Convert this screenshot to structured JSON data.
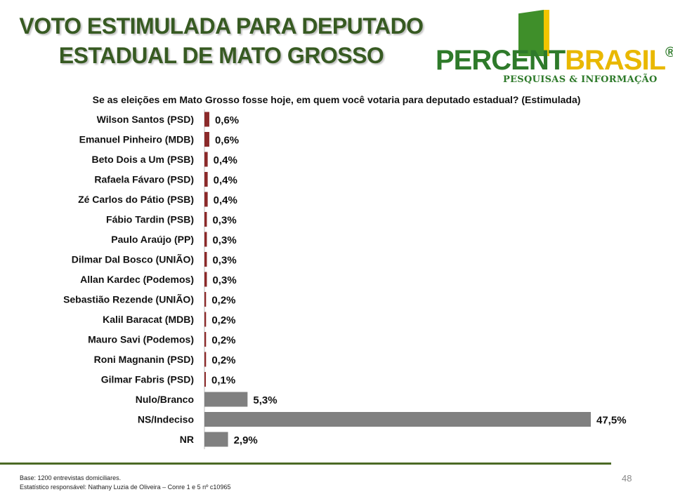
{
  "title_line1": "VOTO ESTIMULADA PARA DEPUTADO",
  "title_line2": "ESTADUAL DE MATO GROSSO",
  "logo": {
    "brand_part1": "PERCENT",
    "brand_part2": "BRASIL",
    "reg": "®",
    "tagline": "PESQUISAS & INFORMAÇÃO"
  },
  "question": "Se as eleições em Mato Grosso fosse hoje, em quem você votaria para deputado estadual? (Estimulada)",
  "footnote_base": "Base: 1200 entrevistas domiciliares.",
  "footnote_stat": "Estatístico responsável: Nathany Luzia de Oliveira – Conre 1 e 5 nº c10965",
  "page_number": "48",
  "colors": {
    "candidate": "#8b2a2a",
    "other": "#808080",
    "title": "#375a22"
  },
  "chart_data": {
    "type": "bar",
    "orientation": "horizontal",
    "categories": [
      "Wilson Santos (PSD)",
      "Emanuel Pinheiro (MDB)",
      "Beto Dois a Um (PSB)",
      "Rafaela Fávaro (PSD)",
      "Zé Carlos do Pátio (PSB)",
      "Fábio Tardin (PSB)",
      "Paulo Araújo (PP)",
      "Dilmar Dal Bosco (UNIÃO)",
      "Allan Kardec (Podemos)",
      "Sebastião Rezende (UNIÃO)",
      "Kalil Baracat (MDB)",
      "Mauro Savi (Podemos)",
      "Roni Magnanin (PSD)",
      "Gilmar Fabris (PSD)",
      "Nulo/Branco",
      "NS/Indeciso",
      "NR"
    ],
    "values": [
      0.6,
      0.6,
      0.4,
      0.4,
      0.4,
      0.3,
      0.3,
      0.3,
      0.3,
      0.2,
      0.2,
      0.2,
      0.2,
      0.1,
      5.3,
      47.5,
      2.9
    ],
    "labels": [
      "0,6%",
      "0,6%",
      "0,4%",
      "0,4%",
      "0,4%",
      "0,3%",
      "0,3%",
      "0,3%",
      "0,3%",
      "0,2%",
      "0,2%",
      "0,2%",
      "0,2%",
      "0,1%",
      "5,3%",
      "47,5%",
      "2,9%"
    ],
    "groups": [
      "candidate",
      "candidate",
      "candidate",
      "candidate",
      "candidate",
      "candidate",
      "candidate",
      "candidate",
      "candidate",
      "candidate",
      "candidate",
      "candidate",
      "candidate",
      "candidate",
      "other",
      "other",
      "other"
    ],
    "xlim": [
      0,
      47.5
    ],
    "grid": false
  }
}
